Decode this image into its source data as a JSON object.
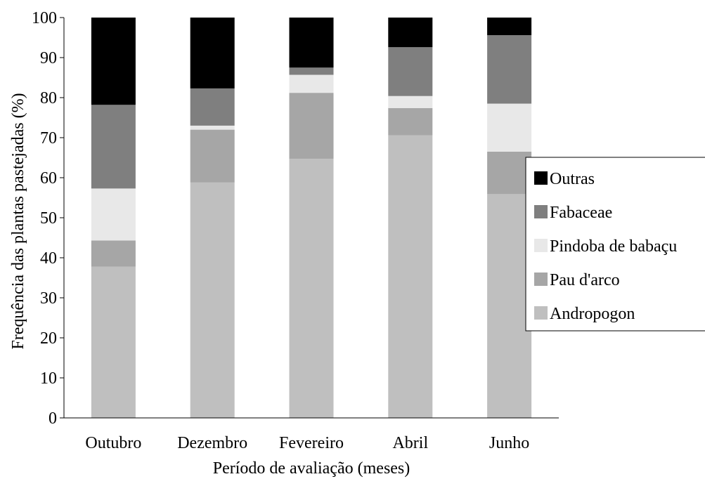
{
  "chart_data": {
    "type": "bar",
    "stacked": true,
    "title": "",
    "xlabel": "Período de avaliação (meses)",
    "ylabel": "Frequência das plantas pastejadas (%)",
    "ylim": [
      0,
      100
    ],
    "yticks": [
      0,
      10,
      20,
      30,
      40,
      50,
      60,
      70,
      80,
      90,
      100
    ],
    "grid": false,
    "legend_position": "right",
    "categories": [
      "Outubro",
      "Dezembro",
      "Fevereiro",
      "Abril",
      "Junho"
    ],
    "series": [
      {
        "name": "Andropogon",
        "color": "#bfbfbf",
        "values": [
          37.8,
          58.8,
          64.7,
          70.6,
          55.9
        ]
      },
      {
        "name": "Pau d'arco",
        "color": "#a6a6a6",
        "values": [
          6.5,
          13.2,
          16.5,
          6.8,
          10.6
        ]
      },
      {
        "name": "Pindoba de babaçu",
        "color": "#e8e8e8",
        "values": [
          13.0,
          1.0,
          4.5,
          3.0,
          12.0
        ]
      },
      {
        "name": "Fabaceae",
        "color": "#7f7f7f",
        "values": [
          20.9,
          9.3,
          1.8,
          12.2,
          17.1
        ]
      },
      {
        "name": "Outras",
        "color": "#000000",
        "values": [
          21.8,
          17.7,
          12.5,
          7.4,
          4.4
        ]
      }
    ],
    "legend_order": [
      "Outras",
      "Fabaceae",
      "Pindoba de babaçu",
      "Pau d'arco",
      "Andropogon"
    ]
  }
}
